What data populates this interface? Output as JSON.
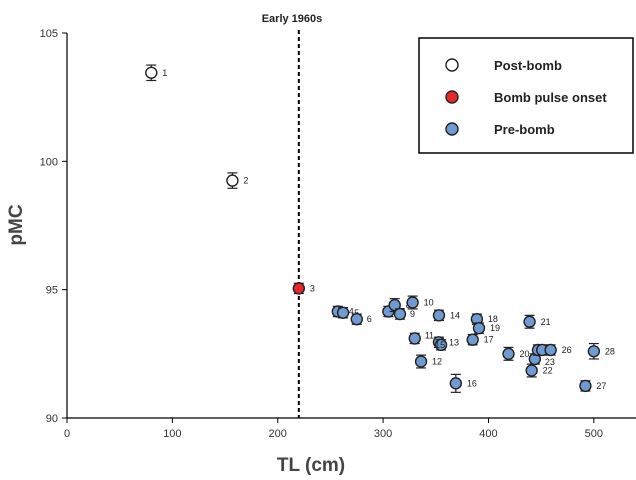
{
  "chart_data": {
    "type": "scatter",
    "xlabel": "TL (cm)",
    "ylabel": "pMC",
    "xlim": [
      0,
      540
    ],
    "ylim": [
      90,
      105
    ],
    "xticks": [
      0,
      100,
      200,
      300,
      400,
      500
    ],
    "yticks": [
      90,
      95,
      100,
      105
    ],
    "grid": false,
    "legend_position": "top-right",
    "annotation": {
      "label": "Early 1960s",
      "x": 220,
      "style": "dashed-vertical-line"
    },
    "series": [
      {
        "name": "Post-bomb",
        "color": "#ffffff",
        "points": [
          {
            "id": "1",
            "x": 80,
            "y": 103.45,
            "err": 0.3
          },
          {
            "id": "2",
            "x": 157,
            "y": 99.25,
            "err": 0.3
          }
        ]
      },
      {
        "name": "Bomb pulse onset",
        "color": "#e8262c",
        "points": [
          {
            "id": "3",
            "x": 220,
            "y": 95.05,
            "err": 0.2
          }
        ]
      },
      {
        "name": "Pre-bomb",
        "color": "#6f9bd2",
        "points": [
          {
            "id": "4",
            "x": 257,
            "y": 94.15,
            "err": 0.2
          },
          {
            "id": "5",
            "x": 262,
            "y": 94.1,
            "err": 0.2
          },
          {
            "id": "6",
            "x": 275,
            "y": 93.85,
            "err": 0.2
          },
          {
            "id": "7",
            "x": 305,
            "y": 94.15,
            "err": 0.2
          },
          {
            "id": "8",
            "x": 311,
            "y": 94.4,
            "err": 0.25
          },
          {
            "id": "9",
            "x": 316,
            "y": 94.05,
            "err": 0.2
          },
          {
            "id": "10",
            "x": 328,
            "y": 94.5,
            "err": 0.25
          },
          {
            "id": "11",
            "x": 330,
            "y": 93.1,
            "err": 0.2
          },
          {
            "id": "12",
            "x": 336,
            "y": 92.2,
            "err": 0.25
          },
          {
            "id": "13",
            "x": 353,
            "y": 92.95,
            "err": 0.2
          },
          {
            "id": "14",
            "x": 353,
            "y": 94.0,
            "err": 0.2
          },
          {
            "id": "15",
            "x": 355,
            "y": 92.85,
            "err": 0.2
          },
          {
            "id": "16",
            "x": 369,
            "y": 91.35,
            "err": 0.35
          },
          {
            "id": "17",
            "x": 385,
            "y": 93.05,
            "err": 0.2
          },
          {
            "id": "18",
            "x": 389,
            "y": 93.85,
            "err": 0.2
          },
          {
            "id": "19",
            "x": 391,
            "y": 93.5,
            "err": 0.2
          },
          {
            "id": "20",
            "x": 419,
            "y": 92.5,
            "err": 0.25
          },
          {
            "id": "21",
            "x": 439,
            "y": 93.75,
            "err": 0.25
          },
          {
            "id": "22",
            "x": 441,
            "y": 91.85,
            "err": 0.25
          },
          {
            "id": "23",
            "x": 444,
            "y": 92.3,
            "err": 0.2
          },
          {
            "id": "24",
            "x": 447,
            "y": 92.65,
            "err": 0.2
          },
          {
            "id": "25",
            "x": 451,
            "y": 92.65,
            "err": 0.2
          },
          {
            "id": "26",
            "x": 459,
            "y": 92.65,
            "err": 0.2
          },
          {
            "id": "27",
            "x": 492,
            "y": 91.25,
            "err": 0.2
          },
          {
            "id": "28",
            "x": 500,
            "y": 92.6,
            "err": 0.3
          }
        ]
      }
    ]
  }
}
